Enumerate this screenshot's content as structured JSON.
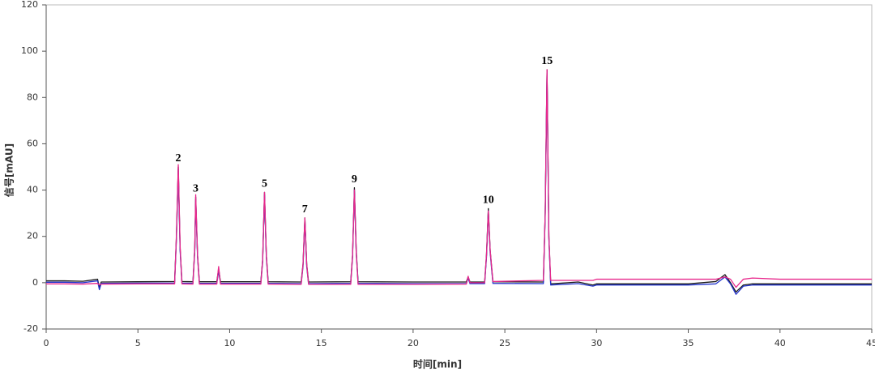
{
  "chart_data": {
    "type": "line",
    "xlabel": "时间[min]",
    "ylabel": "信号[mAU]",
    "xlim": [
      0,
      45
    ],
    "ylim": [
      -20,
      120
    ],
    "xticks": [
      0,
      5,
      10,
      15,
      20,
      25,
      30,
      35,
      40,
      45
    ],
    "yticks": [
      -20,
      0,
      20,
      40,
      60,
      80,
      100,
      120
    ],
    "grid": false,
    "x": [
      0,
      1,
      2,
      2.8,
      2.9,
      3.0,
      3.2,
      5,
      7.0,
      7.1,
      7.2,
      7.3,
      7.4,
      8.0,
      8.1,
      8.15,
      8.25,
      8.35,
      9.3,
      9.4,
      9.5,
      11.7,
      11.8,
      11.9,
      12.0,
      12.1,
      13.9,
      14.0,
      14.1,
      14.2,
      14.3,
      16.6,
      16.7,
      16.8,
      16.9,
      17.0,
      20,
      22.9,
      23.0,
      23.1,
      23.9,
      24.0,
      24.1,
      24.2,
      24.35,
      27.1,
      27.2,
      27.3,
      27.4,
      27.5,
      29,
      29.8,
      30,
      32,
      35,
      36.5,
      37.0,
      37.3,
      37.6,
      38.0,
      38.5,
      40,
      45
    ],
    "series": [
      {
        "color": "#1a1a1a",
        "values": [
          0.8,
          0.8,
          0.6,
          1.5,
          -2,
          0.3,
          0.3,
          0.4,
          0.5,
          20,
          50,
          15,
          0.5,
          0.4,
          15,
          37,
          12,
          0.4,
          0.4,
          6,
          0.4,
          0.4,
          10,
          39,
          12,
          0.4,
          0.3,
          8,
          28,
          8,
          0.3,
          0.4,
          12,
          41,
          14,
          0.4,
          0.3,
          0.3,
          2.5,
          0.3,
          0.3,
          12,
          32,
          14,
          0.4,
          0.3,
          30,
          92,
          20,
          -0.5,
          0.3,
          -1,
          -0.5,
          -0.5,
          -0.5,
          0.5,
          3.5,
          0,
          -4,
          -1,
          -0.5,
          -0.5,
          -0.5
        ]
      },
      {
        "color": "#2233cc",
        "values": [
          0.2,
          0.2,
          0,
          0.8,
          -3,
          -0.3,
          -0.3,
          -0.2,
          -0.2,
          19,
          49,
          14,
          -0.2,
          -0.3,
          14,
          36,
          11,
          -0.3,
          -0.3,
          5,
          -0.3,
          -0.3,
          9,
          38,
          11,
          -0.3,
          -0.4,
          7,
          27,
          7,
          -0.4,
          -0.3,
          11,
          40,
          13,
          -0.3,
          -0.4,
          -0.4,
          2,
          -0.4,
          -0.4,
          11,
          31,
          13,
          -0.3,
          -0.4,
          29,
          91,
          19,
          -1,
          -0.4,
          -1.5,
          -1,
          -1,
          -1,
          -0.5,
          2.5,
          -0.5,
          -5,
          -1.5,
          -1,
          -1,
          -1
        ]
      },
      {
        "color": "#e8288c",
        "values": [
          -0.5,
          -0.5,
          -0.6,
          -0.3,
          -1,
          -0.6,
          -0.6,
          -0.5,
          -0.5,
          21,
          51,
          16,
          -0.5,
          -0.6,
          15,
          38,
          12,
          -0.6,
          -0.6,
          7,
          -0.6,
          -0.6,
          10,
          39,
          12,
          -0.6,
          -0.7,
          8,
          28,
          8,
          -0.7,
          -0.7,
          12,
          40,
          13,
          -0.7,
          -0.7,
          -0.6,
          2.8,
          0,
          0,
          12,
          31,
          14,
          0.5,
          1,
          30,
          92,
          20,
          1,
          1,
          1,
          1.5,
          1.5,
          1.5,
          1.5,
          2.5,
          1.5,
          -2,
          1.5,
          2,
          1.5,
          1.5
        ]
      }
    ],
    "annotations": [
      {
        "text": "2",
        "x": 7.2,
        "y": 50
      },
      {
        "text": "3",
        "x": 8.15,
        "y": 37
      },
      {
        "text": "5",
        "x": 11.9,
        "y": 39
      },
      {
        "text": "7",
        "x": 14.1,
        "y": 28
      },
      {
        "text": "9",
        "x": 16.8,
        "y": 41
      },
      {
        "text": "10",
        "x": 24.1,
        "y": 32
      },
      {
        "text": "15",
        "x": 27.3,
        "y": 92
      }
    ]
  }
}
